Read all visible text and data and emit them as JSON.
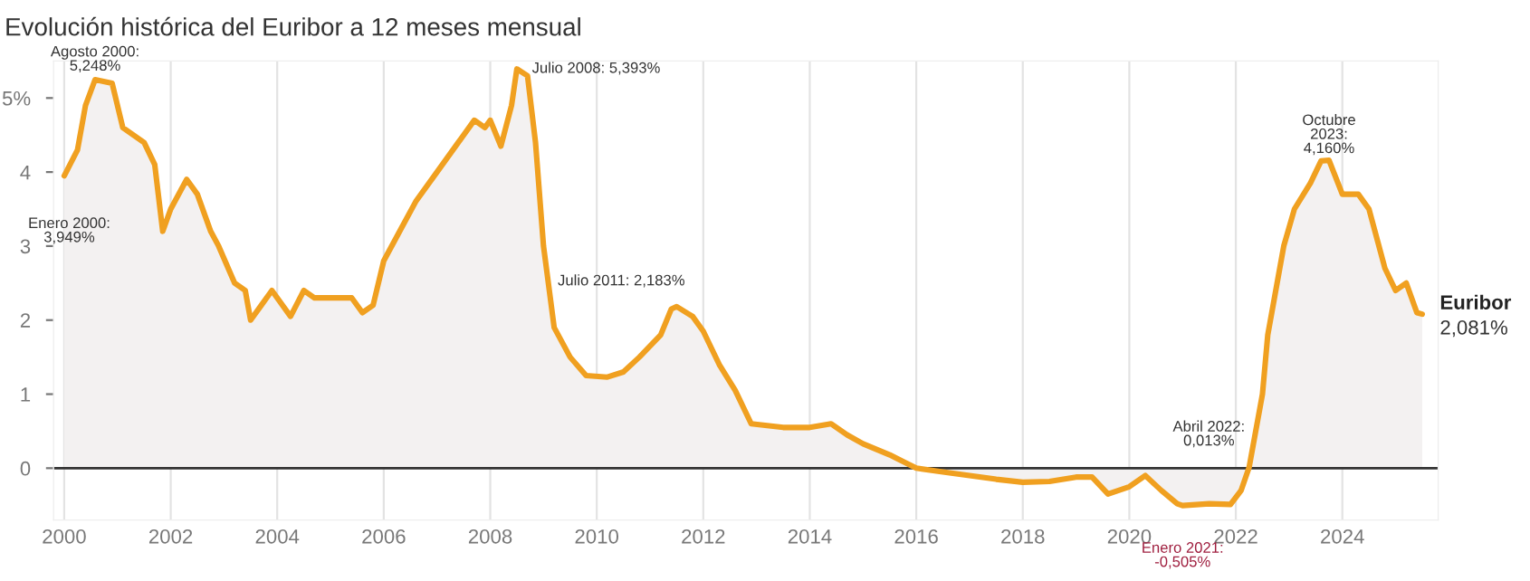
{
  "chart_data": {
    "type": "area",
    "title": "Evolución histórica del Euribor a 12 meses mensual",
    "x": [
      2000.0,
      2000.25,
      2000.4,
      2000.58,
      2000.9,
      2001.1,
      2001.3,
      2001.5,
      2001.7,
      2001.85,
      2002.0,
      2002.3,
      2002.5,
      2002.75,
      2002.9,
      2003.2,
      2003.4,
      2003.5,
      2003.7,
      2003.9,
      2004.25,
      2004.5,
      2004.7,
      2005.0,
      2005.4,
      2005.6,
      2005.8,
      2006.0,
      2006.3,
      2006.6,
      2007.0,
      2007.4,
      2007.7,
      2007.9,
      2008.0,
      2008.2,
      2008.4,
      2008.5,
      2008.7,
      2008.85,
      2009.0,
      2009.2,
      2009.5,
      2009.8,
      2010.2,
      2010.5,
      2010.8,
      2011.2,
      2011.4,
      2011.5,
      2011.8,
      2012.0,
      2012.3,
      2012.6,
      2012.9,
      2013.5,
      2014.0,
      2014.4,
      2014.7,
      2015.0,
      2015.5,
      2016.0,
      2016.5,
      2017.0,
      2017.5,
      2018.0,
      2018.5,
      2019.0,
      2019.3,
      2019.6,
      2020.0,
      2020.3,
      2020.6,
      2020.9,
      2021.0,
      2021.5,
      2021.9,
      2022.1,
      2022.25,
      2022.5,
      2022.6,
      2022.8,
      2022.9,
      2023.1,
      2023.4,
      2023.6,
      2023.75,
      2024.0,
      2024.3,
      2024.5,
      2024.8,
      2025.0,
      2025.2,
      2025.4,
      2025.5
    ],
    "series": [
      {
        "name": "Euribor",
        "color": "#f0a020",
        "values": [
          3.949,
          4.3,
          4.9,
          5.248,
          5.2,
          4.6,
          4.5,
          4.4,
          4.1,
          3.2,
          3.5,
          3.9,
          3.7,
          3.2,
          3.0,
          2.5,
          2.4,
          2.0,
          2.2,
          2.4,
          2.05,
          2.4,
          2.3,
          2.3,
          2.3,
          2.1,
          2.2,
          2.8,
          3.2,
          3.6,
          4.0,
          4.4,
          4.7,
          4.6,
          4.7,
          4.35,
          4.9,
          5.393,
          5.3,
          4.4,
          3.0,
          1.9,
          1.5,
          1.25,
          1.23,
          1.3,
          1.5,
          1.8,
          2.15,
          2.183,
          2.05,
          1.85,
          1.4,
          1.05,
          0.6,
          0.55,
          0.55,
          0.6,
          0.45,
          0.33,
          0.18,
          0.0,
          -0.05,
          -0.1,
          -0.15,
          -0.19,
          -0.18,
          -0.12,
          -0.12,
          -0.35,
          -0.25,
          -0.1,
          -0.3,
          -0.48,
          -0.505,
          -0.48,
          -0.49,
          -0.3,
          0.013,
          1.0,
          1.8,
          2.6,
          3.0,
          3.5,
          3.85,
          4.15,
          4.16,
          3.7,
          3.7,
          3.5,
          2.7,
          2.4,
          2.5,
          2.1,
          2.081
        ]
      }
    ],
    "xlim": [
      1999.8,
      2025.8
    ],
    "ylim": [
      -0.7,
      5.5
    ],
    "xticks": [
      2000,
      2002,
      2004,
      2006,
      2008,
      2010,
      2012,
      2014,
      2016,
      2018,
      2020,
      2022,
      2024
    ],
    "yticks": [
      0,
      1,
      2,
      3,
      4,
      {
        "value": 5,
        "label": "5%"
      }
    ],
    "grid": "x",
    "legend": false,
    "ref_lines": [
      {
        "axis": "y",
        "value": 0,
        "color": "#333333"
      }
    ],
    "annotations": [
      {
        "text": "Enero 2000:\n3,949%",
        "x": 2000,
        "y": 3.949
      },
      {
        "text": "Agosto 2000:\n5,248%",
        "x": 2000.58,
        "y": 5.248
      },
      {
        "text": "Julio 2008: 5,393%",
        "x": 2008.5,
        "y": 5.393
      },
      {
        "text": "Julio 2011: 2,183%",
        "x": 2011.5,
        "y": 2.183
      },
      {
        "text": "Abril 2022:\n0,013%",
        "x": 2022.25,
        "y": 0.013
      },
      {
        "text": "Enero 2021:\n-0,505%",
        "x": 2021.0,
        "y": -0.505
      },
      {
        "text": "Octubre\n2023:\n4,160%",
        "x": 2023.75,
        "y": 4.16
      },
      {
        "text": "2,081%",
        "x": 2025.5,
        "y": 2.081
      }
    ]
  }
}
